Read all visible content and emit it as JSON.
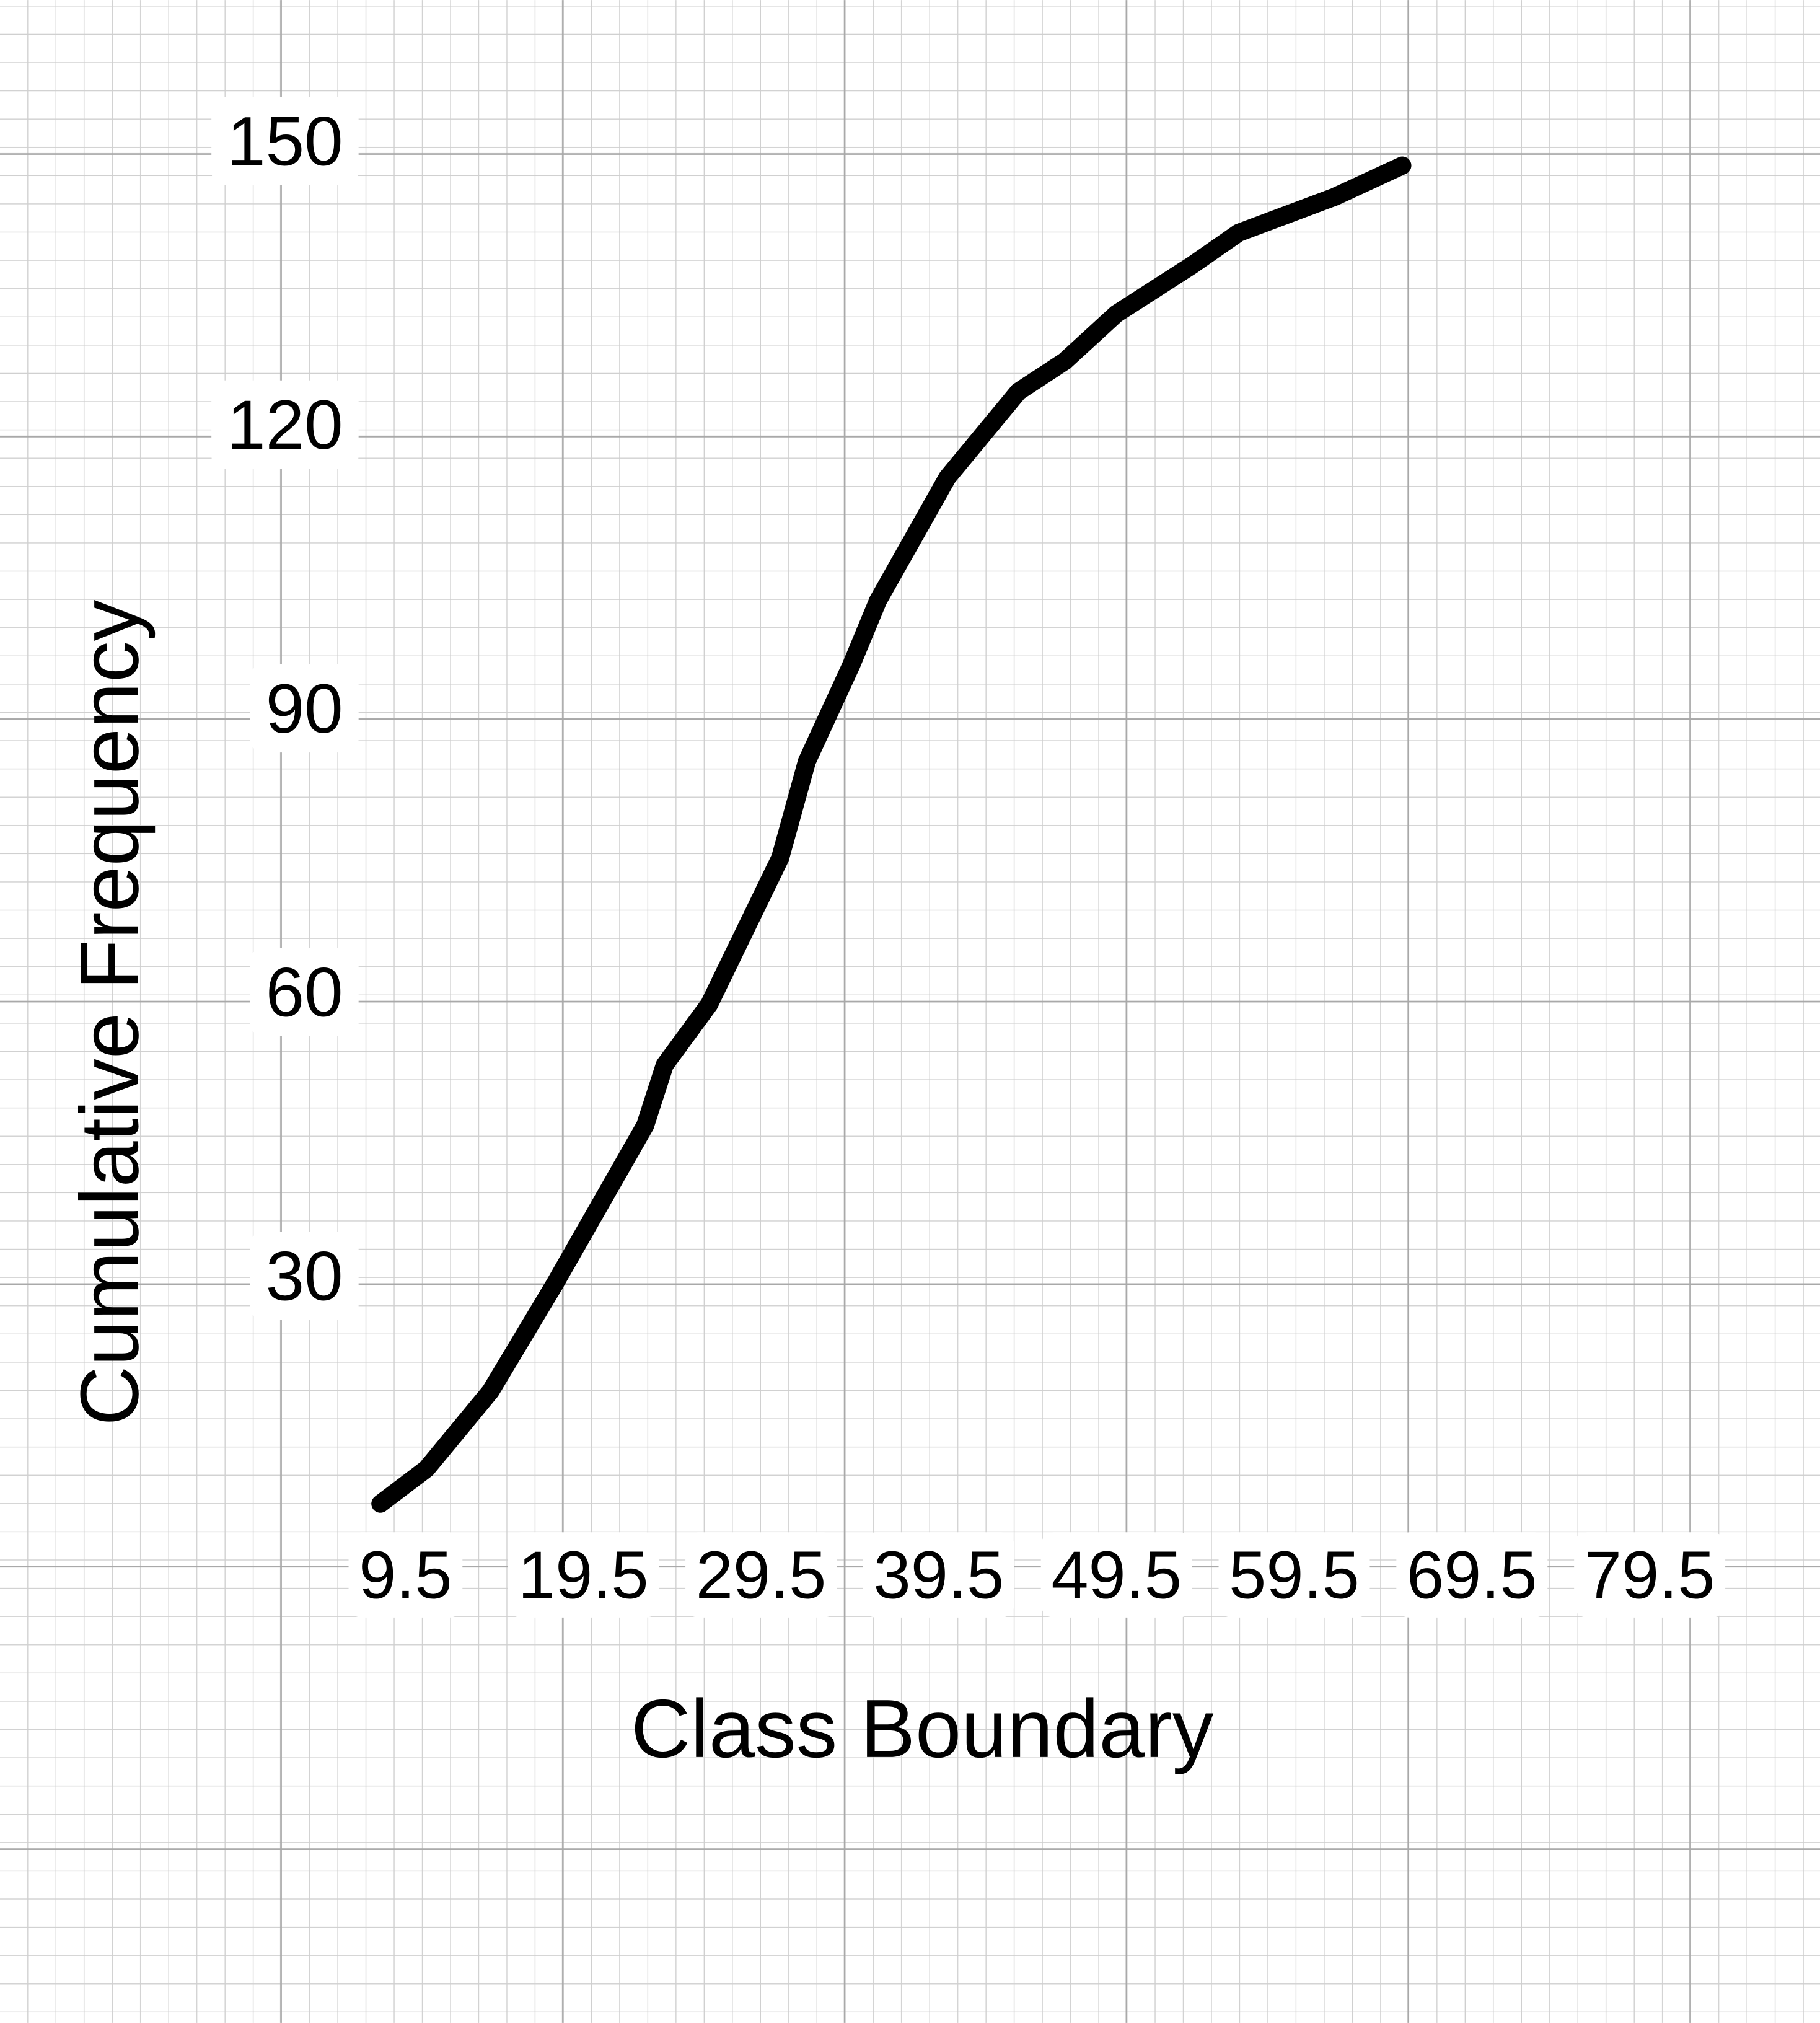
{
  "chart_data": {
    "type": "line",
    "xlabel": "Class Boundary",
    "ylabel": "Cumulative Frequency",
    "x": [
      9.1,
      11.7,
      15.3,
      18.9,
      24.0,
      25.1,
      27.6,
      31.6,
      33.1,
      35.6,
      37.1,
      41.0,
      45.0,
      47.6,
      50.5,
      54.8,
      57.4,
      62.8,
      66.6
    ],
    "values": [
      6.5,
      10.2,
      18.4,
      29.7,
      46.5,
      52.9,
      59.3,
      74.8,
      85.0,
      95.2,
      102.0,
      115.0,
      124.1,
      127.3,
      132.3,
      137.5,
      140.9,
      144.7,
      148.0
    ],
    "color": "#000000",
    "xlim": [
      -12.3,
      90.1
    ],
    "ylim": [
      -48.4,
      165.5
    ],
    "xticks": [
      9.5,
      19.5,
      29.5,
      39.5,
      49.5,
      59.5,
      69.5,
      79.5
    ],
    "yticks": [
      30,
      60,
      90,
      120,
      150
    ]
  }
}
